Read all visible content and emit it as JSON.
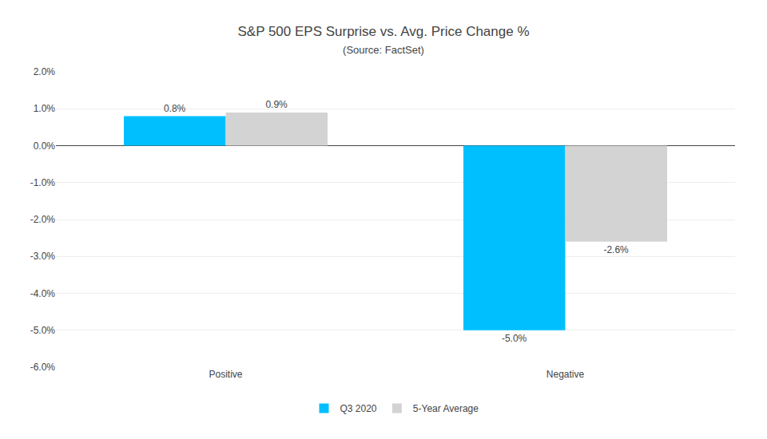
{
  "chart_data": {
    "type": "bar",
    "title": "S&P 500 EPS Surprise vs. Avg. Price Change %",
    "subtitle": "(Source: FactSet)",
    "categories": [
      "Positive",
      "Negative"
    ],
    "series": [
      {
        "name": "Q3 2020",
        "color": "#00BFFF",
        "values": [
          0.8,
          -5.0
        ],
        "value_labels": [
          "0.8%",
          "-5.0%"
        ]
      },
      {
        "name": "5-Year Average",
        "color": "#D3D3D3",
        "values": [
          0.9,
          -2.6
        ],
        "value_labels": [
          "0.9%",
          "-2.6%"
        ]
      }
    ],
    "ylim": [
      -6.0,
      2.0
    ],
    "yticks": [
      {
        "value": -6.0,
        "label": "-6.0%"
      },
      {
        "value": -5.0,
        "label": "-5.0%"
      },
      {
        "value": -4.0,
        "label": "-4.0%"
      },
      {
        "value": -3.0,
        "label": "-3.0%"
      },
      {
        "value": -2.0,
        "label": "-2.0%"
      },
      {
        "value": -1.0,
        "label": "-1.0%"
      },
      {
        "value": 0.0,
        "label": "0.0%"
      },
      {
        "value": 1.0,
        "label": "1.0%"
      },
      {
        "value": 2.0,
        "label": "2.0%"
      }
    ],
    "grid": true,
    "legend": "bottom",
    "data_labels": true
  }
}
